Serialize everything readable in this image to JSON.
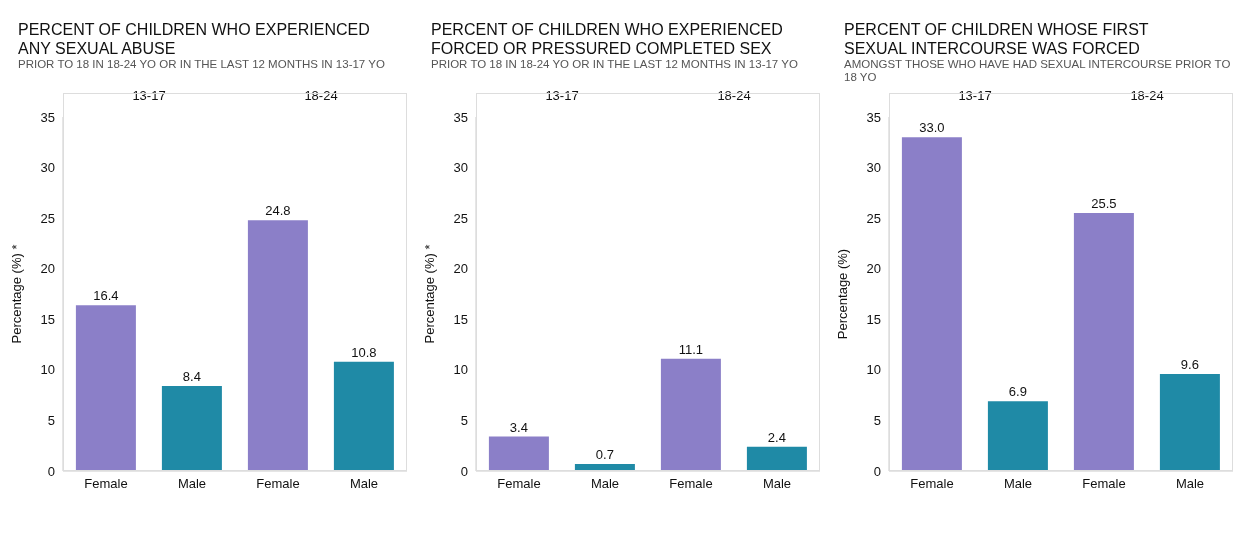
{
  "chart_data": [
    {
      "type": "bar",
      "title": "PERCENT OF CHILDREN WHO EXPERIENCED ANY SEXUAL ABUSE",
      "subtitle": "PRIOR TO 18 IN 18-24 YO OR IN THE LAST 12 MONTHS IN 13-17 YO",
      "ylabel": "Percentage (%) *",
      "categories": [
        "Female",
        "Male",
        "Female",
        "Male"
      ],
      "values": [
        16.4,
        8.4,
        24.8,
        10.8
      ],
      "value_labels": [
        "16.4",
        "8.4",
        "24.8",
        "10.8"
      ],
      "colors": [
        "#8b7fc8",
        "#1f8aa6",
        "#8b7fc8",
        "#1f8aa6"
      ],
      "annotations": [
        "13-17",
        "18-24"
      ],
      "ylim": [
        0,
        35
      ],
      "yticks": [
        0,
        5,
        10,
        15,
        20,
        25,
        30,
        35
      ]
    },
    {
      "type": "bar",
      "title": "PERCENT OF CHILDREN WHO EXPERIENCED FORCED OR PRESSURED COMPLETED SEX",
      "subtitle": "PRIOR TO 18 IN 18-24 YO OR IN THE LAST 12 MONTHS IN 13-17 YO",
      "ylabel": "Percentage (%) *",
      "categories": [
        "Female",
        "Male",
        "Female",
        "Male"
      ],
      "values": [
        3.4,
        0.7,
        11.1,
        2.4
      ],
      "value_labels": [
        "3.4",
        "0.7",
        "11.1",
        "2.4"
      ],
      "colors": [
        "#8b7fc8",
        "#1f8aa6",
        "#8b7fc8",
        "#1f8aa6"
      ],
      "annotations": [
        "13-17",
        "18-24"
      ],
      "ylim": [
        0,
        35
      ],
      "yticks": [
        0,
        5,
        10,
        15,
        20,
        25,
        30,
        35
      ]
    },
    {
      "type": "bar",
      "title": "PERCENT OF CHILDREN WHOSE FIRST SEXUAL INTERCOURSE WAS FORCED",
      "subtitle": "AMONGST THOSE WHO HAVE HAD SEXUAL INTERCOURSE PRIOR TO 18 YO",
      "ylabel": "Percentage (%)",
      "categories": [
        "Female",
        "Male",
        "Female",
        "Male"
      ],
      "values": [
        33.0,
        6.9,
        25.5,
        9.6
      ],
      "value_labels": [
        "33.0",
        "6.9",
        "25.5",
        "9.6"
      ],
      "colors": [
        "#8b7fc8",
        "#1f8aa6",
        "#8b7fc8",
        "#1f8aa6"
      ],
      "annotations": [
        "13-17",
        "18-24"
      ],
      "ylim": [
        0,
        35
      ],
      "yticks": [
        0,
        5,
        10,
        15,
        20,
        25,
        30,
        35
      ]
    }
  ]
}
